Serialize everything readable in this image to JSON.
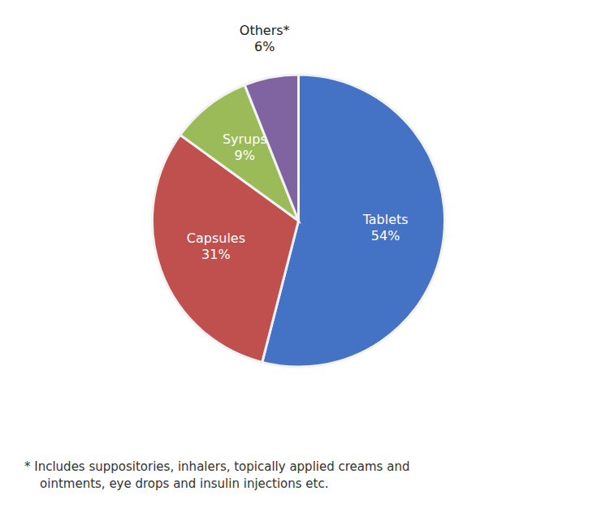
{
  "chart_data": {
    "type": "pie",
    "categories": [
      "Tablets",
      "Capsules",
      "Syrups",
      "Others*"
    ],
    "values": [
      54,
      31,
      9,
      6
    ],
    "value_labels": [
      "54%",
      "31%",
      "9%",
      "6%"
    ],
    "colors": [
      "#4472C4",
      "#C0504D",
      "#9BBB59",
      "#8064A2"
    ],
    "annotations": [
      "* Includes suppositories, inhalers, topically applied creams and",
      "    ointments, eye drops and insulin injections etc."
    ]
  }
}
